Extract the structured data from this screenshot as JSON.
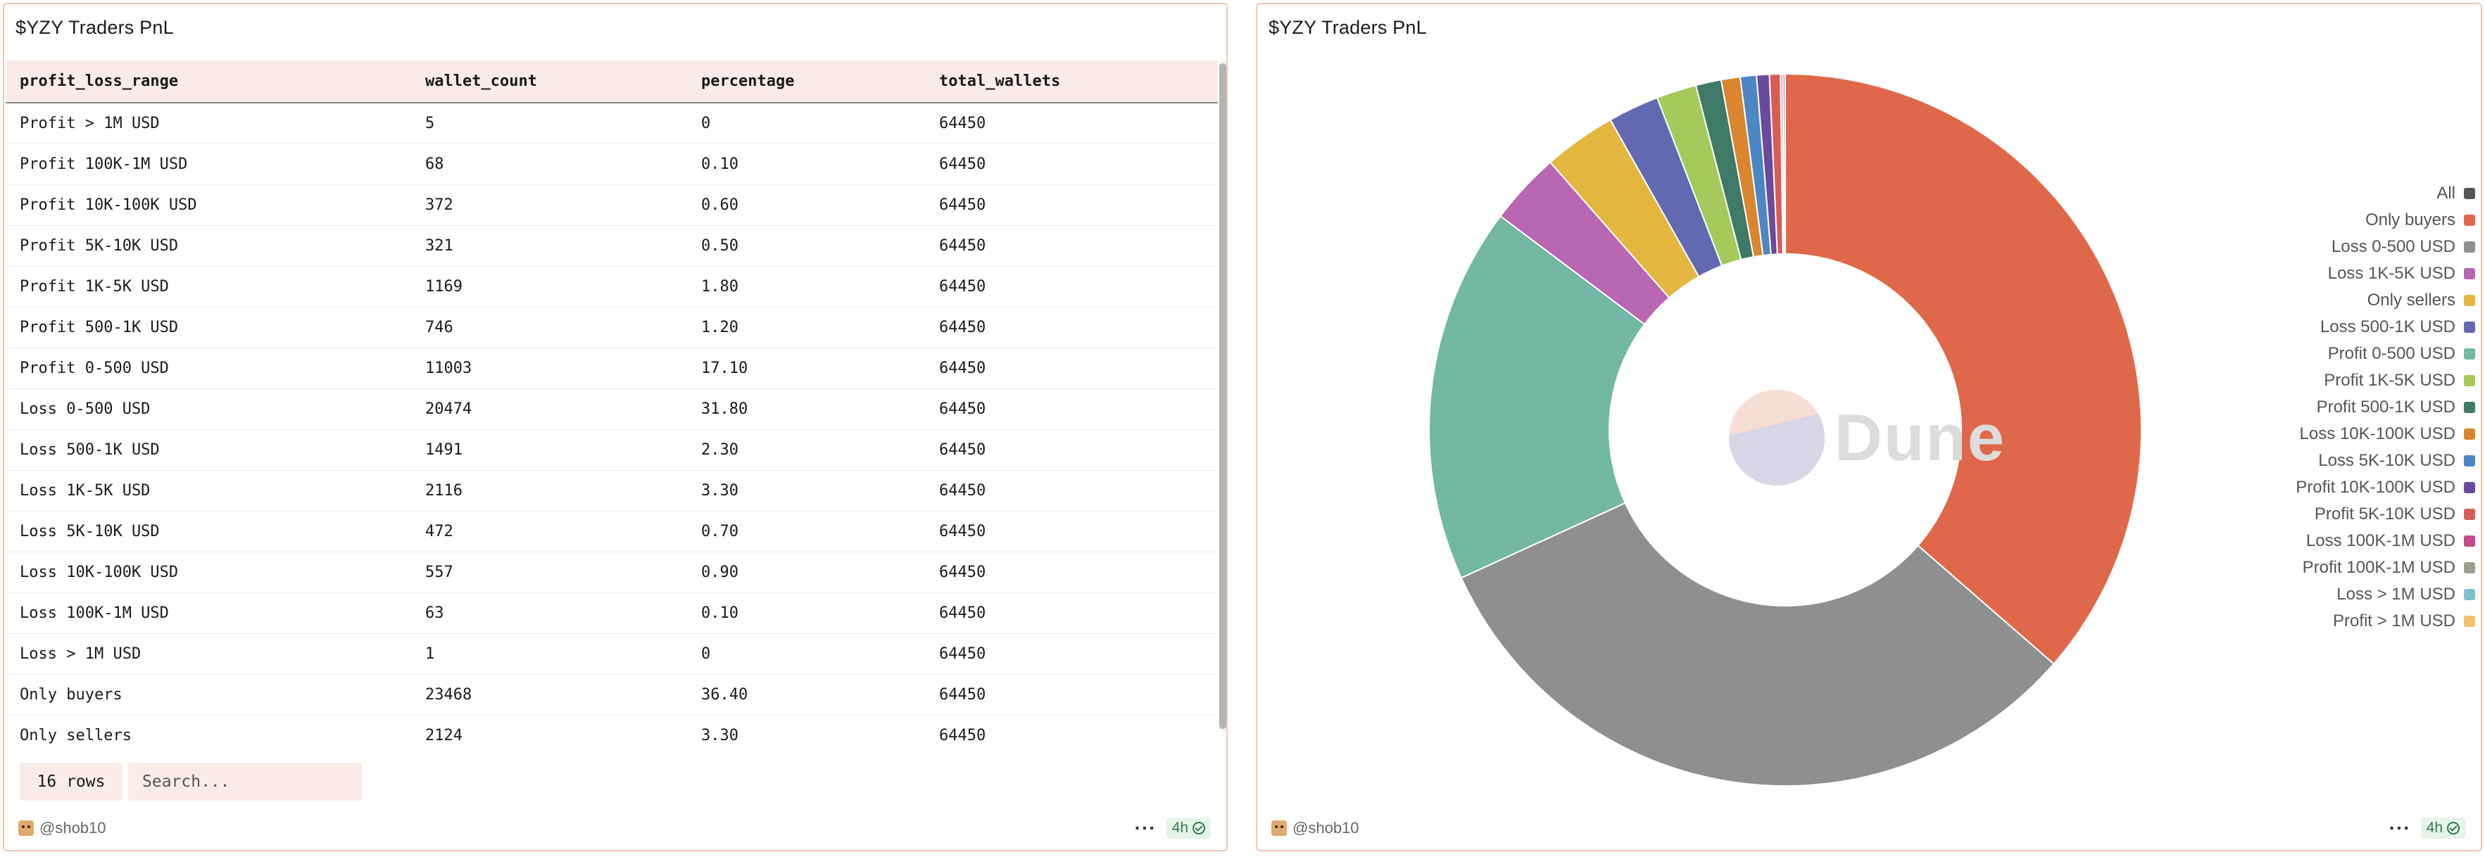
{
  "table_panel": {
    "title": "$YZY Traders PnL",
    "columns": [
      "profit_loss_range",
      "wallet_count",
      "percentage",
      "total_wallets"
    ],
    "rows": [
      [
        "Profit > 1M USD",
        "5",
        "0",
        "64450"
      ],
      [
        "Profit 100K-1M USD",
        "68",
        "0.10",
        "64450"
      ],
      [
        "Profit 10K-100K USD",
        "372",
        "0.60",
        "64450"
      ],
      [
        "Profit 5K-10K USD",
        "321",
        "0.50",
        "64450"
      ],
      [
        "Profit 1K-5K USD",
        "1169",
        "1.80",
        "64450"
      ],
      [
        "Profit 500-1K USD",
        "746",
        "1.20",
        "64450"
      ],
      [
        "Profit 0-500 USD",
        "11003",
        "17.10",
        "64450"
      ],
      [
        "Loss 0-500 USD",
        "20474",
        "31.80",
        "64450"
      ],
      [
        "Loss 500-1K USD",
        "1491",
        "2.30",
        "64450"
      ],
      [
        "Loss 1K-5K USD",
        "2116",
        "3.30",
        "64450"
      ],
      [
        "Loss 5K-10K USD",
        "472",
        "0.70",
        "64450"
      ],
      [
        "Loss 10K-100K USD",
        "557",
        "0.90",
        "64450"
      ],
      [
        "Loss 100K-1M USD",
        "63",
        "0.10",
        "64450"
      ],
      [
        "Loss > 1M USD",
        "1",
        "0",
        "64450"
      ],
      [
        "Only buyers",
        "23468",
        "36.40",
        "64450"
      ],
      [
        "Only sellers",
        "2124",
        "3.30",
        "64450"
      ]
    ],
    "row_count": "16 rows",
    "search_placeholder": "Search...",
    "author": "@shob10",
    "age": "4h"
  },
  "chart_panel": {
    "title": "$YZY Traders PnL",
    "author": "@shob10",
    "age": "4h",
    "watermark": "Dune"
  },
  "chart_data": {
    "type": "pie",
    "donut": true,
    "title": "$YZY Traders PnL",
    "legend_position": "right",
    "legend": [
      {
        "name": "All",
        "color": "#555555"
      },
      {
        "name": "Only buyers",
        "color": "#e0684a"
      },
      {
        "name": "Loss 0-500 USD",
        "color": "#8f8f8f"
      },
      {
        "name": "Loss 1K-5K USD",
        "color": "#b966b3"
      },
      {
        "name": "Only sellers",
        "color": "#e3b640"
      },
      {
        "name": "Loss 500-1K USD",
        "color": "#6369b1"
      },
      {
        "name": "Profit 0-500 USD",
        "color": "#72b8a2"
      },
      {
        "name": "Profit 1K-5K USD",
        "color": "#a5c95b"
      },
      {
        "name": "Profit 500-1K USD",
        "color": "#3e7a66"
      },
      {
        "name": "Loss 10K-100K USD",
        "color": "#d9862e"
      },
      {
        "name": "Loss 5K-10K USD",
        "color": "#4d86c4"
      },
      {
        "name": "Profit 10K-100K USD",
        "color": "#6a4a9c"
      },
      {
        "name": "Profit 5K-10K USD",
        "color": "#d95c55"
      },
      {
        "name": "Loss 100K-1M USD",
        "color": "#c44a8a"
      },
      {
        "name": "Profit 100K-1M USD",
        "color": "#9e9e8e"
      },
      {
        "name": "Loss > 1M USD",
        "color": "#7ec0cc"
      },
      {
        "name": "Profit > 1M USD",
        "color": "#f0c36a"
      }
    ],
    "slices": [
      {
        "name": "Only buyers",
        "value": 23468
      },
      {
        "name": "Loss 0-500 USD",
        "value": 20474
      },
      {
        "name": "Profit 0-500 USD",
        "value": 11003
      },
      {
        "name": "Loss 1K-5K USD",
        "value": 2116
      },
      {
        "name": "Only sellers",
        "value": 2124
      },
      {
        "name": "Loss 500-1K USD",
        "value": 1491
      },
      {
        "name": "Profit 1K-5K USD",
        "value": 1169
      },
      {
        "name": "Profit 500-1K USD",
        "value": 746
      },
      {
        "name": "Loss 10K-100K USD",
        "value": 557
      },
      {
        "name": "Loss 5K-10K USD",
        "value": 472
      },
      {
        "name": "Profit 10K-100K USD",
        "value": 372
      },
      {
        "name": "Profit 5K-10K USD",
        "value": 321
      },
      {
        "name": "Profit 100K-1M USD",
        "value": 68
      },
      {
        "name": "Loss 100K-1M USD",
        "value": 63
      },
      {
        "name": "Profit > 1M USD",
        "value": 5
      },
      {
        "name": "Loss > 1M USD",
        "value": 1
      }
    ]
  }
}
